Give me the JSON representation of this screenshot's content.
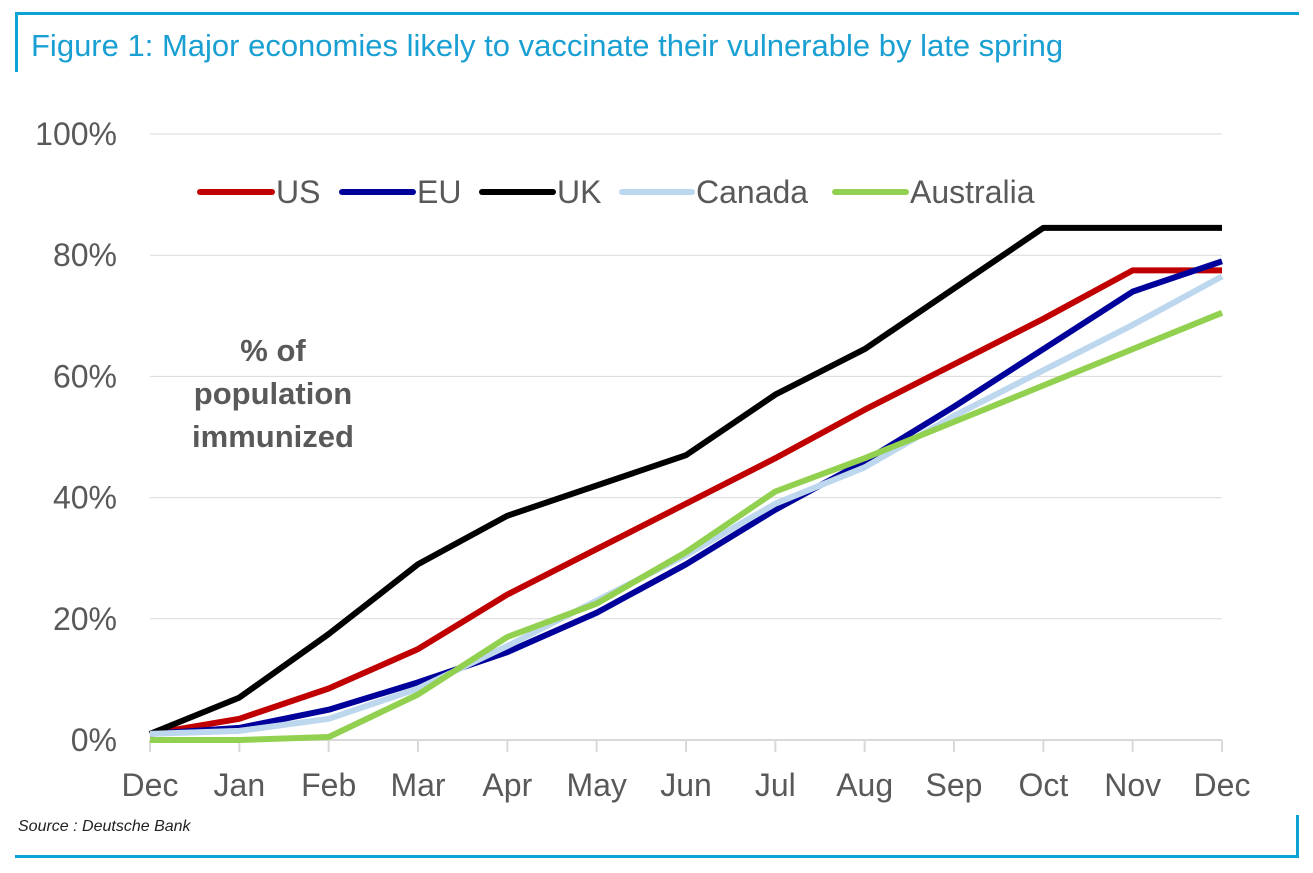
{
  "figure": {
    "title": "Figure 1: Major economies likely to vaccinate their vulnerable by late spring",
    "source": "Source : Deutsche Bank",
    "accent_color": "#0aa3d4"
  },
  "chart_data": {
    "type": "line",
    "title": "",
    "xlabel": "",
    "ylabel": "",
    "categories": [
      "Dec",
      "Jan",
      "Feb",
      "Mar",
      "Apr",
      "May",
      "Jun",
      "Jul",
      "Aug",
      "Sep",
      "Oct",
      "Nov",
      "Dec"
    ],
    "y_ticks": [
      "0%",
      "20%",
      "40%",
      "60%",
      "80%",
      "100%"
    ],
    "y_tick_values": [
      0,
      20,
      40,
      60,
      80,
      100
    ],
    "ylim": [
      0,
      100
    ],
    "grid": "horizontal",
    "legend_position": "top",
    "annotation_lines": [
      "% of",
      "population",
      "immunized"
    ],
    "series": [
      {
        "name": "US",
        "color": "#c00000",
        "values": [
          1,
          3.5,
          8.5,
          15,
          24,
          31.5,
          39,
          46.5,
          54.5,
          62,
          69.5,
          77.5,
          77.5
        ]
      },
      {
        "name": "EU",
        "color": "#00009a",
        "values": [
          1,
          2,
          5,
          9.5,
          14.5,
          21,
          29,
          38,
          46,
          55,
          64.5,
          74,
          79
        ]
      },
      {
        "name": "UK",
        "color": "#000000",
        "values": [
          1,
          7,
          17.5,
          29,
          37,
          42,
          47,
          57,
          64.5,
          74.5,
          84.5,
          84.5,
          84.5
        ]
      },
      {
        "name": "Canada",
        "color": "#bdd7ee",
        "values": [
          1,
          1.5,
          3.5,
          8.5,
          15.5,
          23,
          30.5,
          39,
          45,
          53.5,
          61,
          68.5,
          76.5
        ]
      },
      {
        "name": "Australia",
        "color": "#92d050",
        "values": [
          0,
          0,
          0.5,
          7.5,
          17,
          22.5,
          31,
          41,
          46.5,
          52.5,
          58.5,
          64.5,
          70.5
        ]
      }
    ]
  }
}
